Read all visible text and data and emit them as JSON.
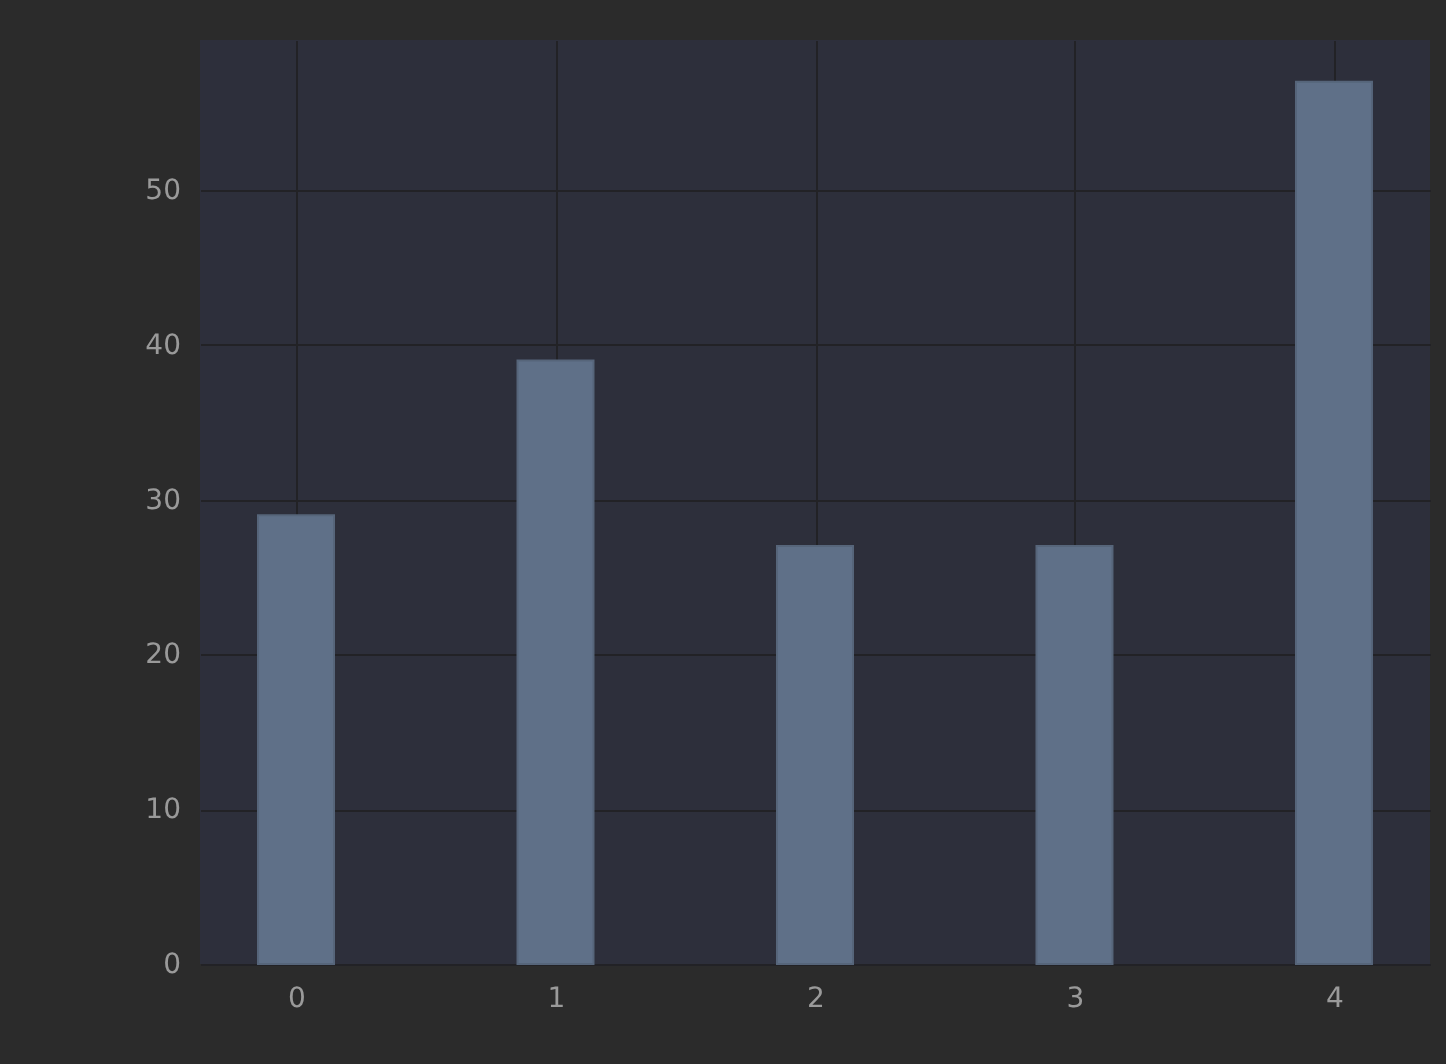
{
  "chart_data": {
    "type": "bar",
    "x": [
      0,
      1,
      2,
      3,
      4
    ],
    "values": [
      29,
      39,
      27,
      27,
      57
    ],
    "color": "#5f7088",
    "xlim": [
      -0.37,
      4.37
    ],
    "xticks": [
      0,
      1,
      2,
      3,
      4
    ],
    "ylim": [
      0,
      59.7
    ],
    "yticks": [
      0,
      10,
      20,
      30,
      40,
      50
    ],
    "grid": true
  }
}
